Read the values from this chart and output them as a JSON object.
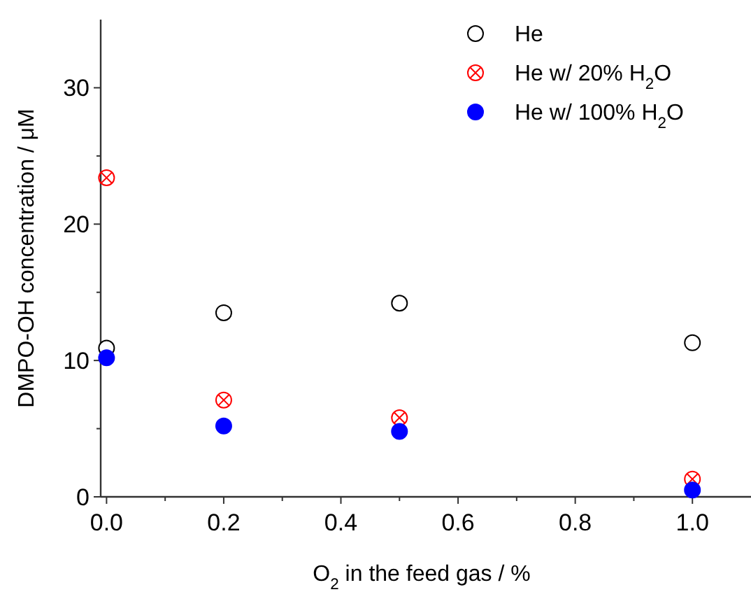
{
  "chart_data": {
    "type": "scatter",
    "xlabel": "O$_{2}$ in the feed gas / %",
    "ylabel": "DMPO-OH concentration / μM",
    "x": [
      0,
      0.2,
      0.5,
      1.0
    ],
    "xlim": [
      -0.01,
      1.1
    ],
    "xticks": [
      {
        "value": 0,
        "label": "0.0"
      },
      {
        "value": 0.1,
        "label": null
      },
      {
        "value": 0.2,
        "label": "0.2"
      },
      {
        "value": 0.3,
        "label": null
      },
      {
        "value": 0.4,
        "label": "0.4"
      },
      {
        "value": 0.5,
        "label": null
      },
      {
        "value": 0.6,
        "label": "0.6"
      },
      {
        "value": 0.7,
        "label": null
      },
      {
        "value": 0.8,
        "label": "0.8"
      },
      {
        "value": 0.9,
        "label": null
      },
      {
        "value": 1.0,
        "label": "1.0"
      }
    ],
    "ylim": [
      0,
      35
    ],
    "yticks": [
      0,
      {
        "value": 5,
        "label": null
      },
      10,
      {
        "value": 15,
        "label": null
      },
      20,
      {
        "value": 25,
        "label": null
      },
      30
    ],
    "grid": false,
    "legend": "top right",
    "marker": "circle",
    "series": [
      {
        "name": "He",
        "color": "#000000",
        "values": [
          10.9,
          13.5,
          14.2,
          11.3
        ]
      },
      {
        "name": "He w/ 20% H$_{2}$O",
        "color": "#ff0000",
        "values": [
          23.4,
          7.1,
          5.8,
          1.3
        ]
      },
      {
        "name": "He w/ 100% H$_{2}$O",
        "color": "#0000ff",
        "values": [
          10.2,
          5.2,
          4.8,
          0.5
        ]
      }
    ]
  }
}
